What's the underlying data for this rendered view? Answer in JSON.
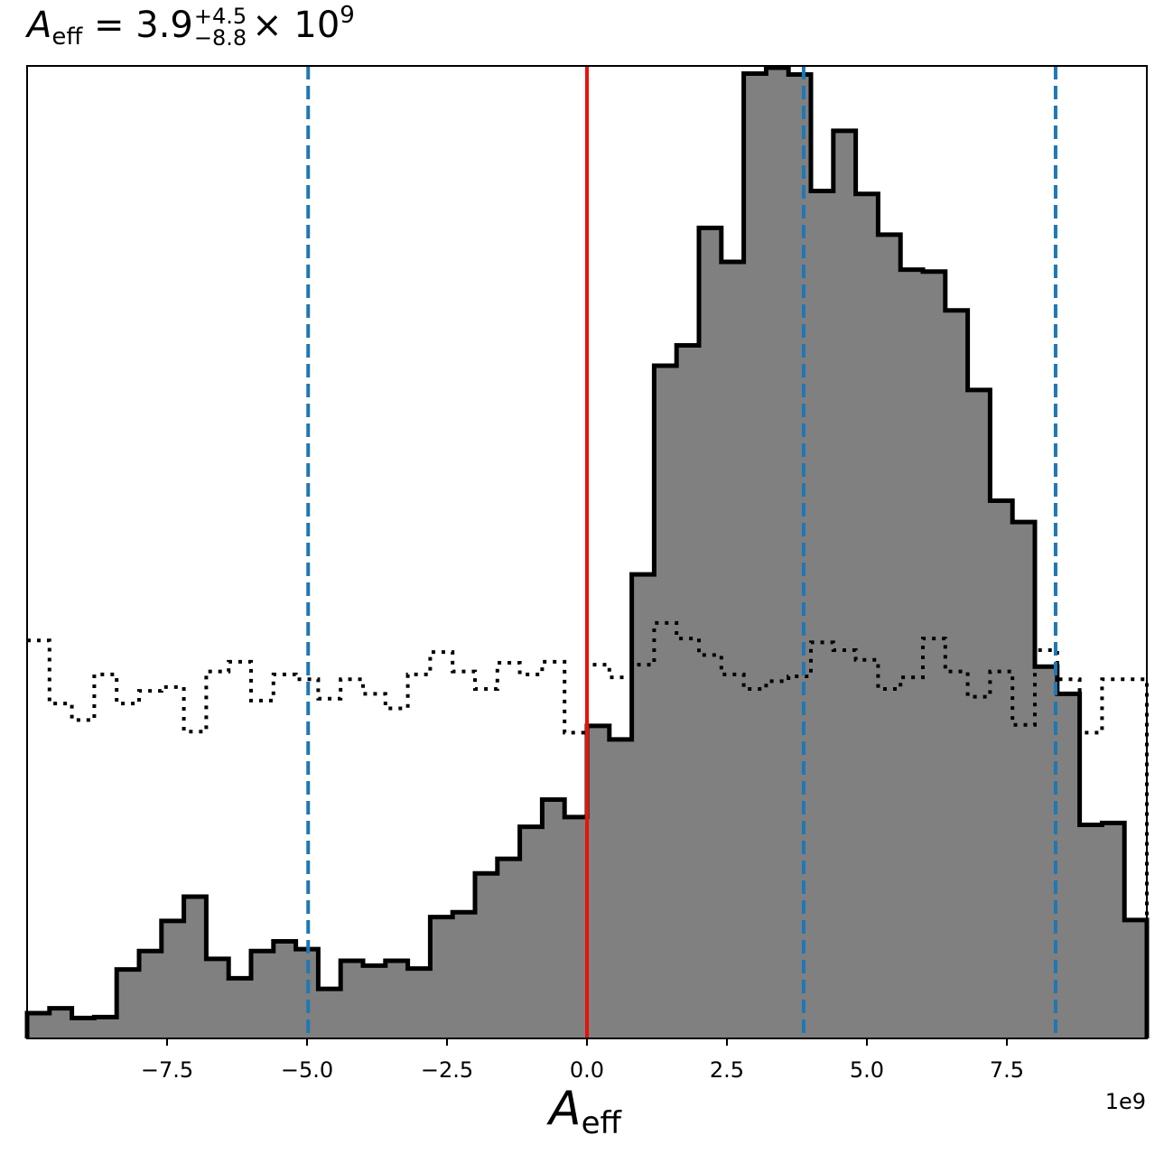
{
  "title": {
    "symbol": "A",
    "subscript": "eff",
    "equals": "=",
    "median": "3.9",
    "plus": "+4.5",
    "minus": "−8.8",
    "times": "×",
    "base": "10",
    "exponent": "9"
  },
  "chart_data": {
    "type": "histogram",
    "xlabel_symbol": "A",
    "xlabel_subscript": "eff",
    "ylabel": "",
    "x_offset_label": "1e9",
    "xlim": [
      -10.0,
      10.0
    ],
    "ylim": [
      0,
      1.0
    ],
    "xticks": [
      -7.5,
      -5.0,
      -2.5,
      0.0,
      2.5,
      5.0,
      7.5
    ],
    "xtick_labels": [
      "−7.5",
      "−5.0",
      "−2.5",
      "0.0",
      "2.5",
      "5.0",
      "7.5"
    ],
    "bin_edges": [
      -10.0,
      -9.6,
      -9.2,
      -8.8,
      -8.4,
      -8.0,
      -7.6,
      -7.2,
      -6.8,
      -6.4,
      -6.0,
      -5.6,
      -5.2,
      -4.8,
      -4.4,
      -4.0,
      -3.6,
      -3.2,
      -2.8,
      -2.4,
      -2.0,
      -1.6,
      -1.2,
      -0.8,
      -0.4,
      0.0,
      0.4,
      0.8,
      1.2,
      1.6,
      2.0,
      2.4,
      2.8,
      3.2,
      3.6,
      4.0,
      4.4,
      4.8,
      5.2,
      5.6,
      6.0,
      6.4,
      6.8,
      7.2,
      7.6,
      8.0,
      8.4,
      8.8,
      9.2,
      9.6,
      10.0
    ],
    "series": [
      {
        "style": "filled-step",
        "fill": "#808080",
        "edge": "#000000",
        "values": [
          0.026,
          0.031,
          0.021,
          0.022,
          0.071,
          0.09,
          0.121,
          0.146,
          0.082,
          0.062,
          0.09,
          0.1,
          0.092,
          0.051,
          0.08,
          0.075,
          0.08,
          0.072,
          0.125,
          0.13,
          0.17,
          0.185,
          0.218,
          0.246,
          0.228,
          0.322,
          0.308,
          0.478,
          0.693,
          0.714,
          0.835,
          0.8,
          0.994,
          1.0,
          0.993,
          0.873,
          0.935,
          0.87,
          0.828,
          0.792,
          0.79,
          0.75,
          0.668,
          0.554,
          0.532,
          0.383,
          0.355,
          0.22,
          0.222,
          0.122
        ]
      },
      {
        "style": "dotted-step",
        "edge": "#000000",
        "values": [
          0.41,
          0.345,
          0.328,
          0.375,
          0.345,
          0.358,
          0.362,
          0.316,
          0.378,
          0.388,
          0.348,
          0.375,
          0.37,
          0.35,
          0.37,
          0.355,
          0.34,
          0.375,
          0.398,
          0.378,
          0.36,
          0.387,
          0.375,
          0.388,
          0.315,
          0.385,
          0.372,
          0.385,
          0.428,
          0.412,
          0.395,
          0.375,
          0.36,
          0.368,
          0.373,
          0.408,
          0.4,
          0.39,
          0.36,
          0.372,
          0.412,
          0.378,
          0.352,
          0.378,
          0.323,
          0.4,
          0.37,
          0.315,
          0.37,
          0.37
        ]
      }
    ],
    "vlines": [
      {
        "x": 0.0,
        "color": "#e8120c",
        "style": "solid"
      },
      {
        "x": -4.98,
        "color": "#1f77b4",
        "style": "dashed"
      },
      {
        "x": 3.87,
        "color": "#1f77b4",
        "style": "dashed"
      },
      {
        "x": 8.37,
        "color": "#1f77b4",
        "style": "dashed"
      }
    ],
    "grid": false
  }
}
